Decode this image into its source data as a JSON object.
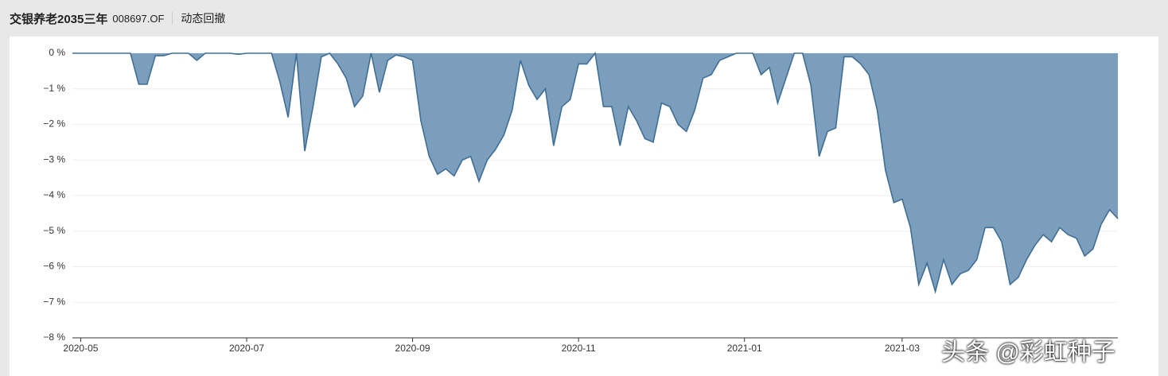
{
  "header": {
    "title": "交银养老2035三年",
    "code": "008697.OF",
    "tab": "动态回撤"
  },
  "watermark": "头条 @彩虹种子",
  "chart_data": {
    "type": "area",
    "categories": [
      null,
      "2020-05",
      null,
      null,
      null,
      null,
      null,
      null,
      null,
      null,
      null,
      null,
      null,
      null,
      null,
      null,
      null,
      null,
      null,
      null,
      null,
      "2020-07",
      null,
      null,
      null,
      null,
      null,
      null,
      null,
      null,
      null,
      null,
      null,
      null,
      null,
      null,
      null,
      null,
      null,
      null,
      null,
      "2020-09",
      null,
      null,
      null,
      null,
      null,
      null,
      null,
      null,
      null,
      null,
      null,
      null,
      null,
      null,
      null,
      null,
      null,
      null,
      null,
      "2020-11",
      null,
      null,
      null,
      null,
      null,
      null,
      null,
      null,
      null,
      null,
      null,
      null,
      null,
      null,
      null,
      null,
      null,
      null,
      null,
      "2021-01",
      null,
      null,
      null,
      null,
      null,
      null,
      null,
      null,
      null,
      null,
      null,
      null,
      null,
      null,
      null,
      null,
      null,
      null,
      "2021-03",
      null,
      null,
      null,
      null,
      null,
      null,
      null,
      null,
      null,
      null,
      null,
      null,
      null,
      null,
      null,
      null,
      null,
      null,
      null,
      null,
      null,
      null,
      null,
      null,
      null,
      null
    ],
    "values": [
      0,
      0,
      0,
      0,
      0,
      0,
      0,
      0,
      -0.87,
      -0.87,
      -0.07,
      -0.07,
      0,
      0,
      0,
      -0.2,
      0,
      0,
      0,
      0,
      -0.03,
      0,
      0,
      0,
      0,
      -0.8,
      -1.8,
      0,
      -2.75,
      -1.5,
      -0.1,
      0,
      -0.3,
      -0.7,
      -1.5,
      -1.2,
      0,
      -1.1,
      -0.2,
      -0.05,
      -0.1,
      -0.2,
      -1.9,
      -2.9,
      -3.4,
      -3.25,
      -3.45,
      -3.0,
      -2.9,
      -3.6,
      -3.0,
      -2.7,
      -2.3,
      -1.6,
      -0.2,
      -0.9,
      -1.3,
      -1.0,
      -2.6,
      -1.5,
      -1.3,
      -0.3,
      -0.3,
      0,
      -1.5,
      -1.5,
      -2.6,
      -1.5,
      -1.9,
      -2.4,
      -2.5,
      -1.4,
      -1.5,
      -2.0,
      -2.2,
      -1.6,
      -0.7,
      -0.6,
      -0.2,
      -0.1,
      0,
      0,
      0,
      -0.6,
      -0.4,
      -1.4,
      -0.7,
      0,
      0,
      -0.9,
      -2.9,
      -2.2,
      -2.1,
      -0.1,
      -0.1,
      -0.3,
      -0.6,
      -1.6,
      -3.3,
      -4.2,
      -4.1,
      -4.9,
      -6.5,
      -5.9,
      -6.7,
      -5.8,
      -6.5,
      -6.2,
      -6.1,
      -5.8,
      -4.9,
      -4.9,
      -5.3,
      -6.5,
      -6.3,
      -5.8,
      -5.4,
      -5.1,
      -5.3,
      -4.9,
      -5.1,
      -5.2,
      -5.7,
      -5.5,
      -4.8,
      -4.4,
      -4.65
    ],
    "fill": "#7b9ebd",
    "color": "#3f6e96",
    "ylim": [
      -8,
      0
    ],
    "yticks": [
      {
        "value": 0,
        "label": "0 %"
      },
      {
        "value": -1,
        "label": "−1 %"
      },
      {
        "value": -2,
        "label": "−2 %"
      },
      {
        "value": -3,
        "label": "−3 %"
      },
      {
        "value": -4,
        "label": "−4 %"
      },
      {
        "value": -5,
        "label": "−5 %"
      },
      {
        "value": -6,
        "label": "−6 %"
      },
      {
        "value": -7,
        "label": "−7 %"
      },
      {
        "value": -8,
        "label": "−8 %"
      }
    ],
    "grid": true
  }
}
